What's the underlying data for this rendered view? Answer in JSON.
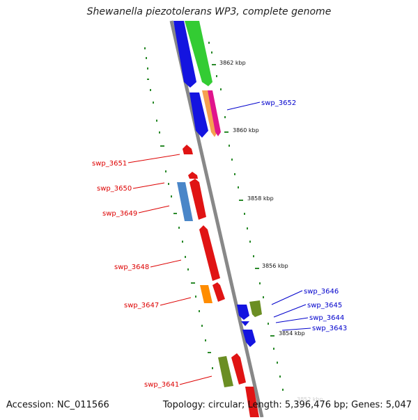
{
  "title": "Shewanella piezotolerans WP3, complete genome",
  "footer": {
    "accession": "Accession: NC_011566",
    "summary": "Topology: circular; Length: 5,396,476 bp; Genes: 5,047"
  },
  "colors": {
    "backbone": "#888888",
    "tick_dots": "#2a8a2a",
    "label_left": "#dd0000",
    "label_right": "#0000cc"
  },
  "scale_ticks": [
    "3862 kbp",
    "3860 kbp",
    "3858 kbp",
    "3856 kbp",
    "3854 kbp",
    "3852 kbp"
  ],
  "labels_left": [
    "swp_3651",
    "swp_3650",
    "swp_3649",
    "swp_3648",
    "swp_3647",
    "swp_3641"
  ],
  "labels_right": [
    "swp_3652",
    "swp_3646",
    "swp_3645",
    "swp_3644",
    "swp_3643"
  ]
}
